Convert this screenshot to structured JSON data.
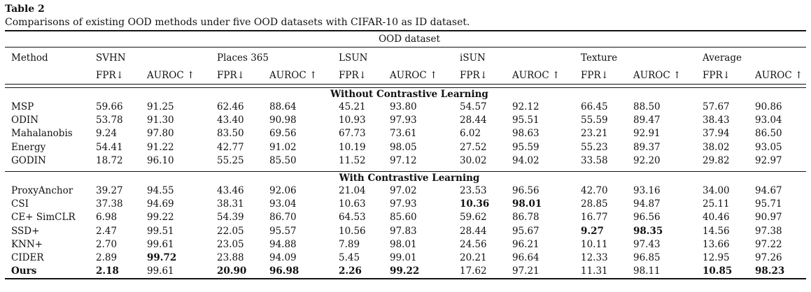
{
  "caption": {
    "label": "Table 2",
    "text": "Comparisons of existing OOD methods under five OOD datasets with CIFAR-10 as ID dataset."
  },
  "header": {
    "group": "OOD dataset",
    "method": "Method",
    "datasets": [
      "SVHN",
      "Places 365",
      "LSUN",
      "iSUN",
      "Texture",
      "Average"
    ],
    "fpr": "FPR↓",
    "auroc": "AUROC ↑"
  },
  "sections": [
    {
      "title": "Without Contrastive Learning",
      "rows": [
        {
          "method": "MSP",
          "values": [
            "59.66",
            "91.25",
            "62.46",
            "88.64",
            "45.21",
            "93.80",
            "54.57",
            "92.12",
            "66.45",
            "88.50",
            "57.67",
            "90.86"
          ],
          "bold": []
        },
        {
          "method": "ODIN",
          "values": [
            "53.78",
            "91.30",
            "43.40",
            "90.98",
            "10.93",
            "97.93",
            "28.44",
            "95.51",
            "55.59",
            "89.47",
            "38.43",
            "93.04"
          ],
          "bold": []
        },
        {
          "method": "Mahalanobis",
          "values": [
            "9.24",
            "97.80",
            "83.50",
            "69.56",
            "67.73",
            "73.61",
            "6.02",
            "98.63",
            "23.21",
            "92.91",
            "37.94",
            "86.50"
          ],
          "bold": []
        },
        {
          "method": "Energy",
          "values": [
            "54.41",
            "91.22",
            "42.77",
            "91.02",
            "10.19",
            "98.05",
            "27.52",
            "95.59",
            "55.23",
            "89.37",
            "38.02",
            "93.05"
          ],
          "bold": []
        },
        {
          "method": "GODIN",
          "values": [
            "18.72",
            "96.10",
            "55.25",
            "85.50",
            "11.52",
            "97.12",
            "30.02",
            "94.02",
            "33.58",
            "92.20",
            "29.82",
            "92.97"
          ],
          "bold": []
        }
      ]
    },
    {
      "title": "With Contrastive Learning",
      "rows": [
        {
          "method": "ProxyAnchor",
          "values": [
            "39.27",
            "94.55",
            "43.46",
            "92.06",
            "21.04",
            "97.02",
            "23.53",
            "96.56",
            "42.70",
            "93.16",
            "34.00",
            "94.67"
          ],
          "bold": []
        },
        {
          "method": "CSI",
          "values": [
            "37.38",
            "94.69",
            "38.31",
            "93.04",
            "10.63",
            "97.93",
            "10.36",
            "98.01",
            "28.85",
            "94.87",
            "25.11",
            "95.71"
          ],
          "bold": [
            6,
            7
          ]
        },
        {
          "method": "CE+ SimCLR",
          "values": [
            "6.98",
            "99.22",
            "54.39",
            "86.70",
            "64.53",
            "85.60",
            "59.62",
            "86.78",
            "16.77",
            "96.56",
            "40.46",
            "90.97"
          ],
          "bold": []
        },
        {
          "method": "SSD+",
          "values": [
            "2.47",
            "99.51",
            "22.05",
            "95.57",
            "10.56",
            "97.83",
            "28.44",
            "95.67",
            "9.27",
            "98.35",
            "14.56",
            "97.38"
          ],
          "bold": [
            8,
            9
          ]
        },
        {
          "method": "KNN+",
          "values": [
            "2.70",
            "99.61",
            "23.05",
            "94.88",
            "7.89",
            "98.01",
            "24.56",
            "96.21",
            "10.11",
            "97.43",
            "13.66",
            "97.22"
          ],
          "bold": []
        },
        {
          "method": "CIDER",
          "values": [
            "2.89",
            "99.72",
            "23.88",
            "94.09",
            "5.45",
            "99.01",
            "20.21",
            "96.64",
            "12.33",
            "96.85",
            "12.95",
            "97.26"
          ],
          "bold": [
            1
          ]
        },
        {
          "method": "Ours",
          "values": [
            "2.18",
            "99.61",
            "20.90",
            "96.98",
            "2.26",
            "99.22",
            "17.62",
            "97.21",
            "11.31",
            "98.11",
            "10.85",
            "98.23"
          ],
          "bold": [
            0,
            2,
            3,
            4,
            5,
            10,
            11
          ],
          "method_bold": true
        }
      ]
    }
  ]
}
